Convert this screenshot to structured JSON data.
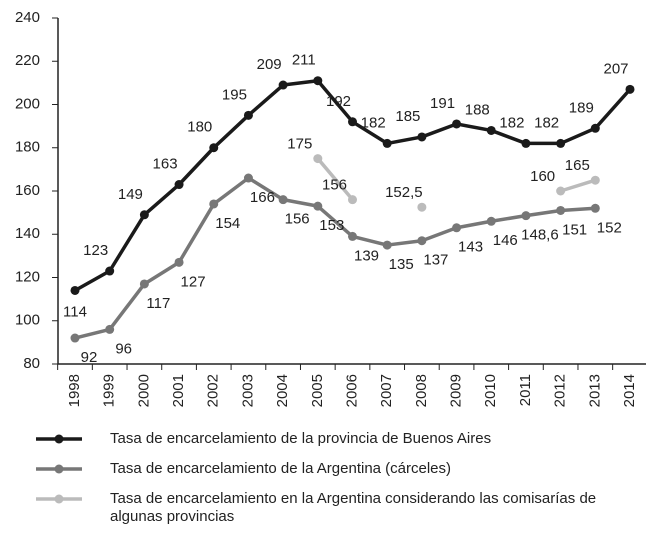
{
  "chart_data": {
    "type": "line",
    "categories": [
      "1998",
      "1999",
      "2000",
      "2001",
      "2002",
      "2003",
      "2004",
      "2005",
      "2006",
      "2007",
      "2008",
      "2009",
      "2010",
      "2011",
      "2012",
      "2013",
      "2014"
    ],
    "ylim": [
      80,
      240
    ],
    "yticks": [
      80,
      100,
      120,
      140,
      160,
      180,
      200,
      220,
      240
    ],
    "grid": false,
    "series": [
      {
        "name": "Tasa de encarcelamiento de la provincia de Buenos Aires",
        "color": "#1a1a1a",
        "values": [
          114,
          123,
          149,
          163,
          180,
          195,
          209,
          211,
          192,
          182,
          185,
          191,
          188,
          182,
          182,
          189,
          207
        ]
      },
      {
        "name": "Tasa de encarcelamiento de la Argentina (cárceles)",
        "color": "#777777",
        "values": [
          92,
          96,
          117,
          127,
          154,
          166,
          156,
          153,
          139,
          135,
          137,
          143,
          146,
          148.6,
          151,
          152,
          null
        ],
        "value_labels": [
          "92",
          "96",
          "117",
          "127",
          "154",
          "166",
          "156",
          "153",
          "139",
          "135",
          "137",
          "143",
          "146",
          "148,6",
          "151",
          "152",
          null
        ]
      },
      {
        "name": "Tasa de encarcelamiento en la Argentina considerando las comisarías de algunas provincias",
        "color": "#bbbbbb",
        "values": [
          null,
          null,
          null,
          null,
          null,
          null,
          null,
          175,
          156,
          null,
          152.5,
          null,
          null,
          null,
          160,
          165,
          null
        ],
        "value_labels": [
          null,
          null,
          null,
          null,
          null,
          null,
          null,
          "175",
          "156",
          null,
          "152,5",
          null,
          null,
          null,
          "160",
          "165",
          null
        ]
      }
    ]
  }
}
